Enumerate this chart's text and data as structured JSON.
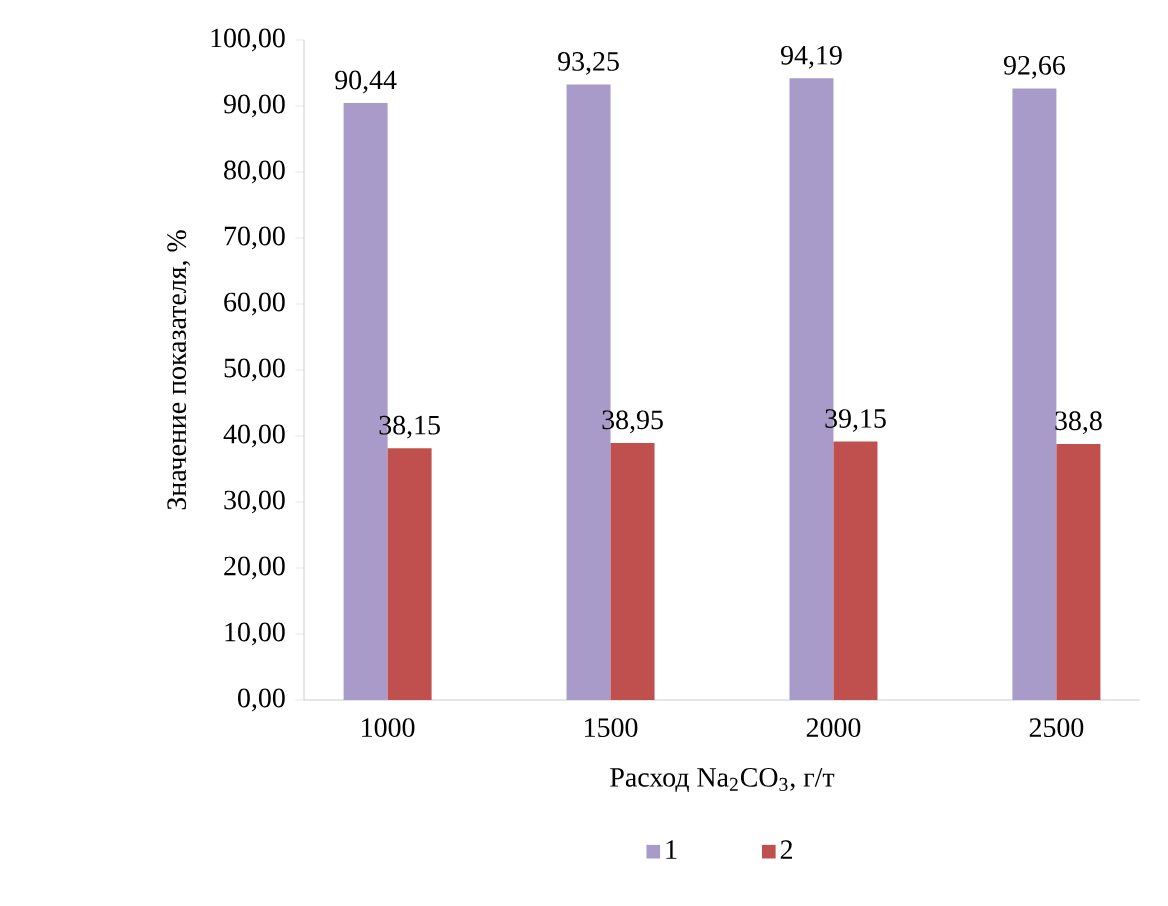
{
  "chart_data": {
    "type": "bar",
    "xlabel": "Расход Na$_{2}$CO$_{3}$, г/т",
    "ylabel": "Значение показателя, %",
    "categories": [
      "1000",
      "1500",
      "2000",
      "2500"
    ],
    "series": [
      {
        "name": "1",
        "color": "#a99bc9",
        "values": [
          90.44,
          93.25,
          94.19,
          92.66
        ],
        "value_labels": [
          "90,44",
          "93,25",
          "94,19",
          "92,66"
        ]
      },
      {
        "name": "2",
        "color": "#c0504d",
        "values": [
          38.15,
          38.95,
          39.15,
          38.8
        ],
        "value_labels": [
          "38,15",
          "38,95",
          "39,15",
          "38,8"
        ]
      }
    ],
    "ylim": [
      0,
      100
    ],
    "yticks": [
      {
        "value": 0,
        "label": "0,00"
      },
      {
        "value": 10,
        "label": "10,00"
      },
      {
        "value": 20,
        "label": "20,00"
      },
      {
        "value": 30,
        "label": "30,00"
      },
      {
        "value": 40,
        "label": "40,00"
      },
      {
        "value": 50,
        "label": "50,00"
      },
      {
        "value": 60,
        "label": "60,00"
      },
      {
        "value": 70,
        "label": "70,00"
      },
      {
        "value": 80,
        "label": "80,00"
      },
      {
        "value": 90,
        "label": "90,00"
      },
      {
        "value": 100,
        "label": "100,00"
      }
    ],
    "legend": "bottom"
  }
}
